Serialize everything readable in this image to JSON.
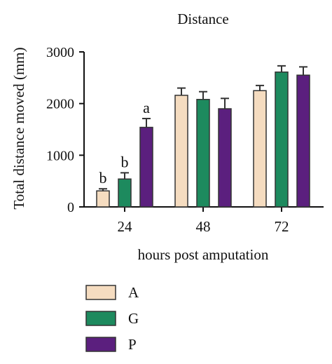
{
  "chart_data": {
    "type": "bar",
    "title": "Distance",
    "xlabel": "hours post amputation",
    "ylabel": "Total distance moved (mm)",
    "categories": [
      "24",
      "48",
      "72"
    ],
    "ylim": [
      0,
      3000
    ],
    "yticks": [
      0,
      1000,
      2000,
      3000
    ],
    "grid": false,
    "legend_position": "bottom-left",
    "series": [
      {
        "name": "A",
        "color": "#f5dcc0",
        "values": [
          310,
          2160,
          2250
        ],
        "errors": [
          40,
          140,
          100
        ]
      },
      {
        "name": "G",
        "color": "#1d8a5e",
        "values": [
          540,
          2080,
          2610
        ],
        "errors": [
          120,
          150,
          120
        ]
      },
      {
        "name": "P",
        "color": "#5b1f7e",
        "values": [
          1540,
          1900,
          2550
        ],
        "errors": [
          170,
          200,
          160
        ]
      }
    ],
    "annotations": [
      {
        "category": "24",
        "series": "A",
        "text": "b"
      },
      {
        "category": "24",
        "series": "G",
        "text": "b"
      },
      {
        "category": "24",
        "series": "P",
        "text": "a"
      }
    ]
  }
}
